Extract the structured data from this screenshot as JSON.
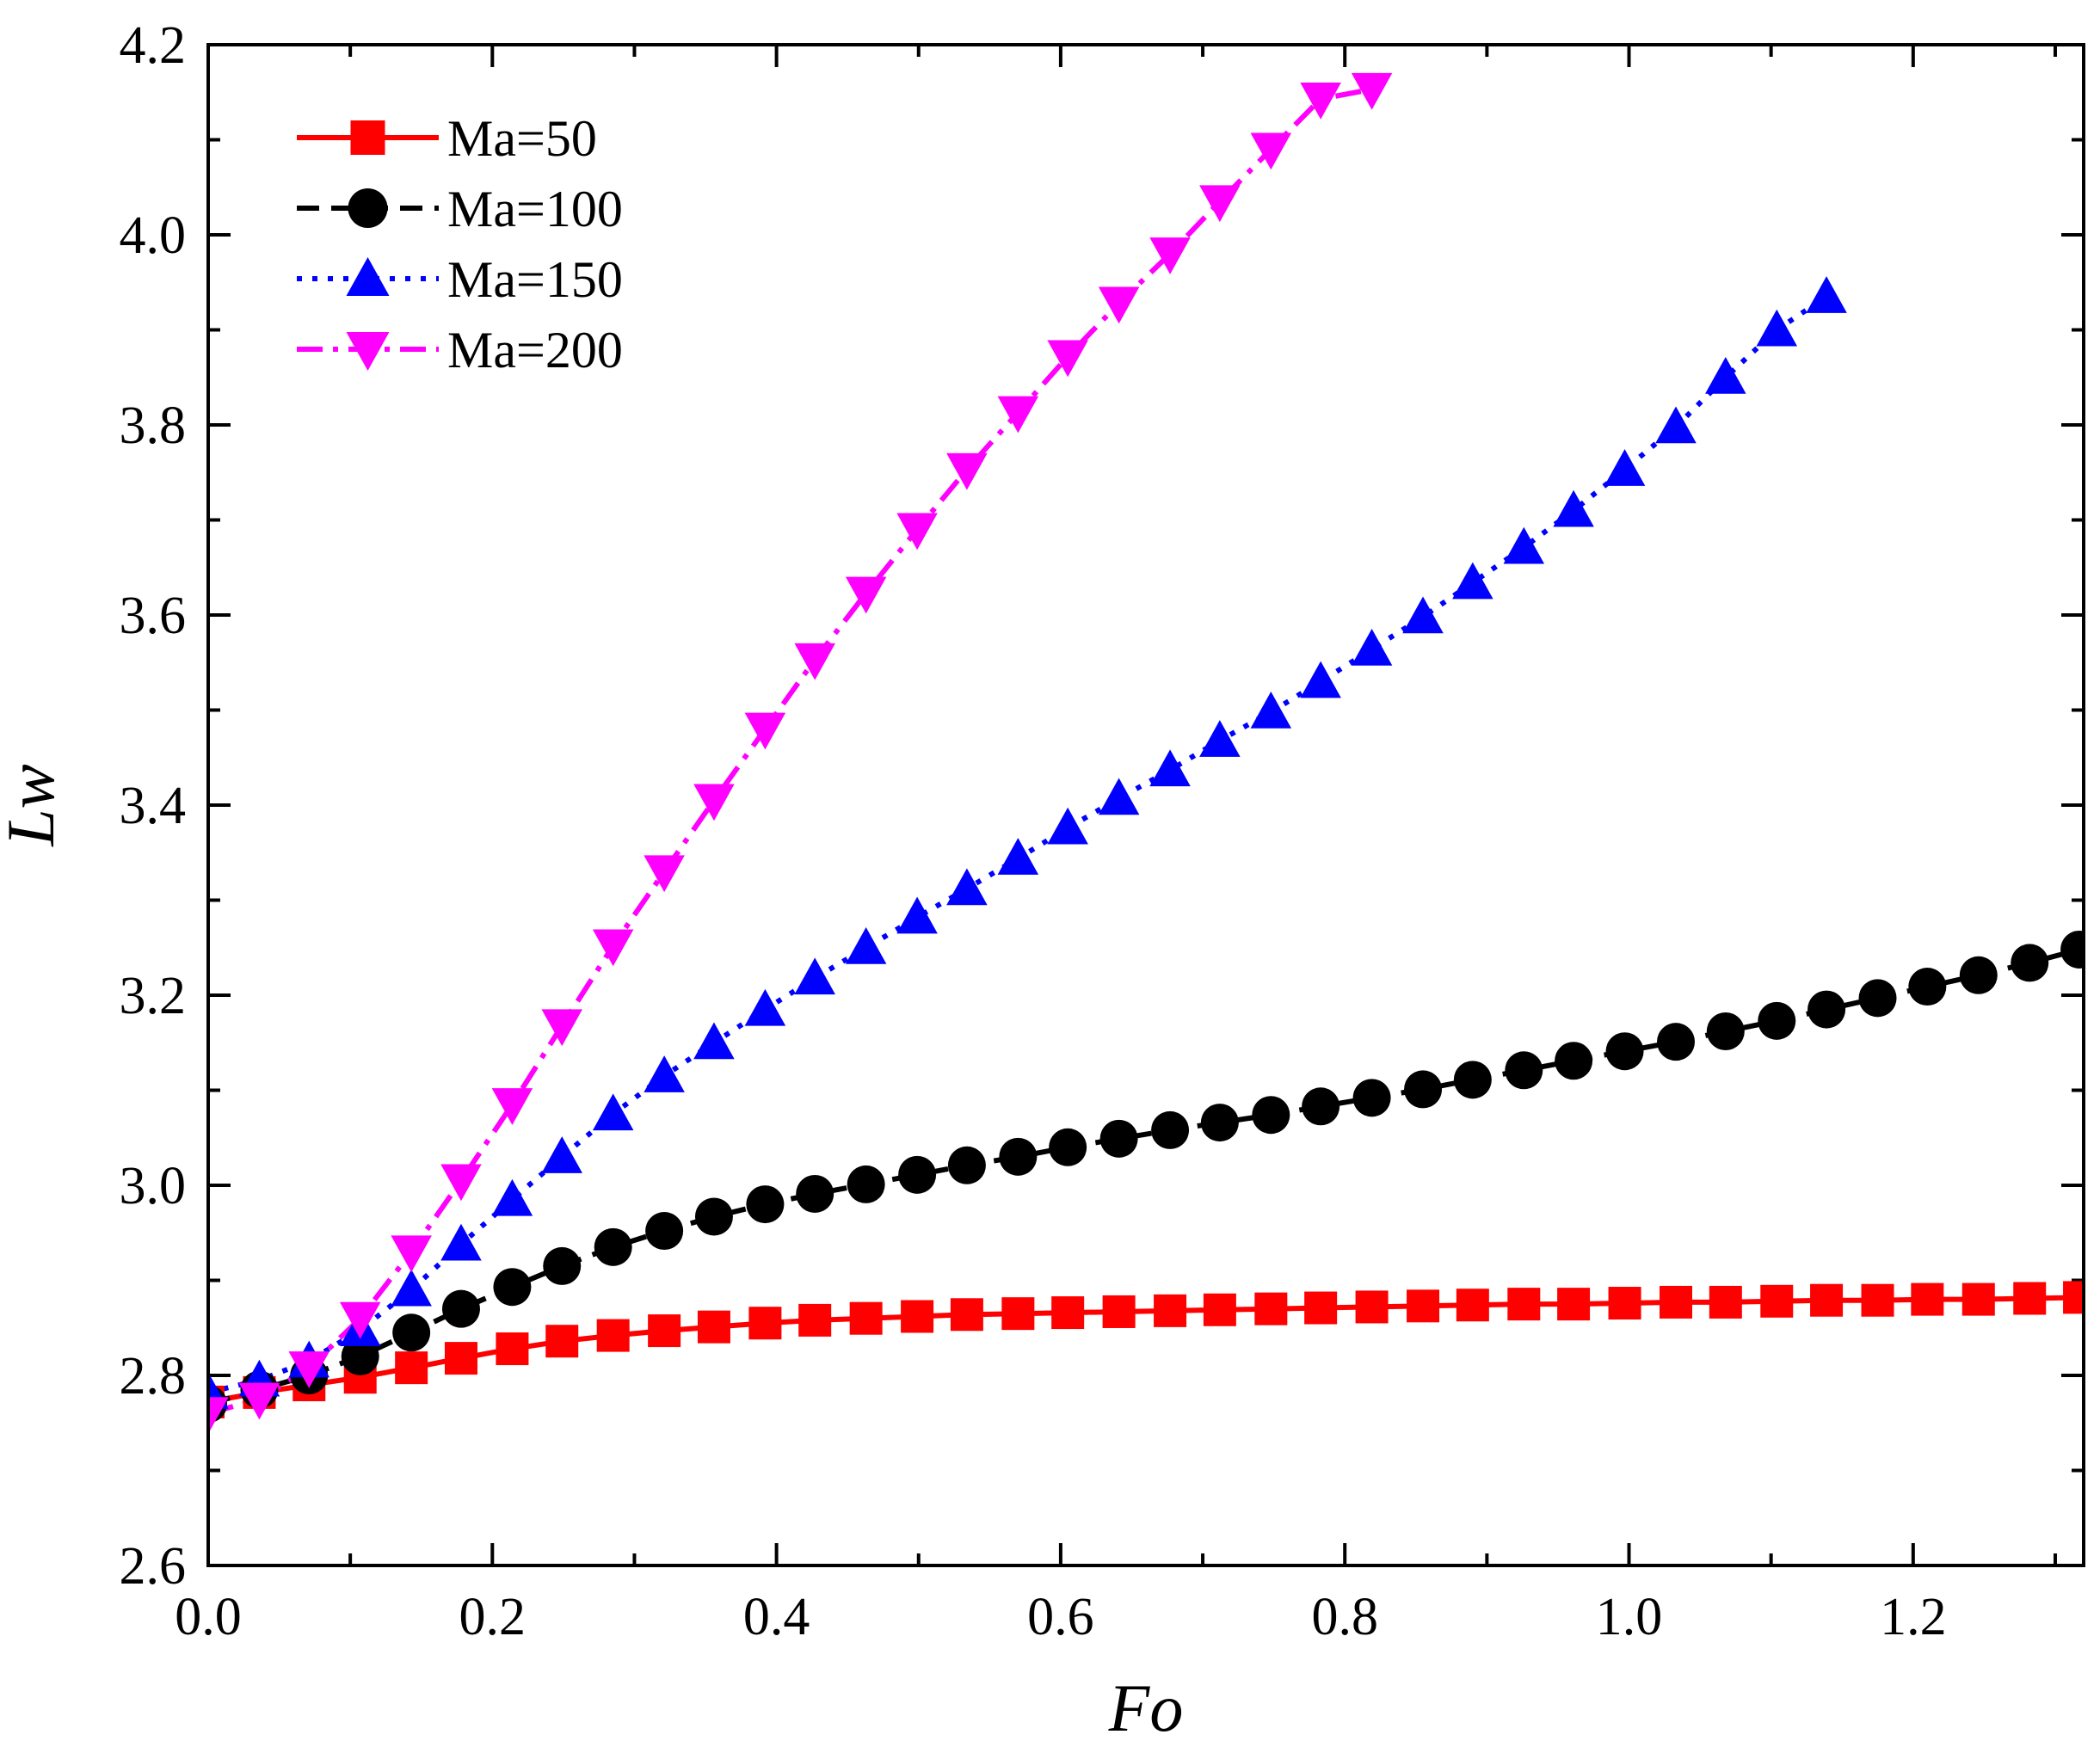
{
  "chart_data": {
    "type": "line",
    "title": "",
    "xlabel": "Fo",
    "ylabel": "Lw",
    "xlim": [
      0,
      1.32
    ],
    "ylim": [
      2.6,
      4.2
    ],
    "xticks": [
      "0.0",
      "0.2",
      "0.4",
      "0.6",
      "0.8",
      "1.0",
      "1.2"
    ],
    "xtick_values": [
      0,
      0.2,
      0.4,
      0.6,
      0.8,
      1.0,
      1.2
    ],
    "yticks": [
      "2.6",
      "2.8",
      "3.0",
      "3.2",
      "3.4",
      "3.6",
      "3.8",
      "4.0",
      "4.2"
    ],
    "ytick_values": [
      2.6,
      2.8,
      3.0,
      3.2,
      3.4,
      3.6,
      3.8,
      4.0,
      4.2
    ],
    "grid": false,
    "legend_position": "top-left",
    "series": [
      {
        "name": "Ma=50",
        "color": "#ff0000",
        "marker": "square",
        "line_style": "solid",
        "x": [
          0.0,
          0.036,
          0.071,
          0.107,
          0.143,
          0.178,
          0.214,
          0.249,
          0.285,
          0.321,
          0.356,
          0.392,
          0.427,
          0.463,
          0.499,
          0.534,
          0.57,
          0.605,
          0.641,
          0.677,
          0.712,
          0.748,
          0.783,
          0.819,
          0.855,
          0.89,
          0.926,
          0.961,
          0.997,
          1.033,
          1.068,
          1.104,
          1.139,
          1.175,
          1.21,
          1.246,
          1.282,
          1.317
        ],
        "values": [
          2.772,
          2.782,
          2.79,
          2.798,
          2.808,
          2.818,
          2.828,
          2.836,
          2.842,
          2.847,
          2.851,
          2.855,
          2.858,
          2.86,
          2.862,
          2.864,
          2.865,
          2.866,
          2.867,
          2.868,
          2.869,
          2.87,
          2.871,
          2.872,
          2.873,
          2.874,
          2.875,
          2.875,
          2.876,
          2.877,
          2.877,
          2.878,
          2.879,
          2.879,
          2.88,
          2.88,
          2.881,
          2.882
        ]
      },
      {
        "name": "Ma=100",
        "color": "#000000",
        "marker": "circle",
        "line_style": "dashed",
        "x": [
          0.0,
          0.036,
          0.071,
          0.107,
          0.143,
          0.178,
          0.214,
          0.249,
          0.285,
          0.321,
          0.356,
          0.392,
          0.427,
          0.463,
          0.499,
          0.534,
          0.57,
          0.605,
          0.641,
          0.677,
          0.712,
          0.748,
          0.783,
          0.819,
          0.855,
          0.89,
          0.926,
          0.961,
          0.997,
          1.033,
          1.068,
          1.104,
          1.139,
          1.175,
          1.21,
          1.246,
          1.282,
          1.317
        ],
        "values": [
          2.77,
          2.785,
          2.8,
          2.82,
          2.845,
          2.87,
          2.893,
          2.915,
          2.935,
          2.952,
          2.967,
          2.98,
          2.991,
          3.001,
          3.011,
          3.021,
          3.03,
          3.04,
          3.049,
          3.058,
          3.066,
          3.074,
          3.083,
          3.092,
          3.101,
          3.111,
          3.121,
          3.131,
          3.141,
          3.151,
          3.162,
          3.173,
          3.185,
          3.197,
          3.209,
          3.221,
          3.234,
          3.248
        ]
      },
      {
        "name": "Ma=150",
        "color": "#0000ff",
        "marker": "triangle-up",
        "line_style": "dotted",
        "x": [
          0.0,
          0.036,
          0.071,
          0.107,
          0.143,
          0.178,
          0.214,
          0.249,
          0.285,
          0.321,
          0.356,
          0.392,
          0.427,
          0.463,
          0.499,
          0.534,
          0.57,
          0.605,
          0.641,
          0.677,
          0.712,
          0.748,
          0.783,
          0.819,
          0.855,
          0.89,
          0.926,
          0.961,
          0.997,
          1.033,
          1.068,
          1.104,
          1.139
        ],
        "values": [
          2.782,
          2.795,
          2.815,
          2.848,
          2.89,
          2.938,
          2.985,
          3.03,
          3.075,
          3.115,
          3.15,
          3.185,
          3.218,
          3.25,
          3.282,
          3.312,
          3.344,
          3.376,
          3.407,
          3.437,
          3.468,
          3.498,
          3.53,
          3.564,
          3.598,
          3.634,
          3.671,
          3.71,
          3.753,
          3.798,
          3.85,
          3.9,
          3.935
        ]
      },
      {
        "name": "Ma=200",
        "color": "#ff00ff",
        "marker": "triangle-down",
        "line_style": "dash-dot",
        "x": [
          0.0,
          0.036,
          0.071,
          0.107,
          0.143,
          0.178,
          0.214,
          0.249,
          0.285,
          0.321,
          0.356,
          0.392,
          0.427,
          0.463,
          0.499,
          0.534,
          0.57,
          0.605,
          0.641,
          0.677,
          0.712,
          0.748,
          0.783,
          0.819
        ],
        "values": [
          2.76,
          2.775,
          2.808,
          2.86,
          2.93,
          3.005,
          3.085,
          3.168,
          3.252,
          3.33,
          3.405,
          3.48,
          3.553,
          3.623,
          3.69,
          3.753,
          3.813,
          3.872,
          3.928,
          3.98,
          4.035,
          4.09,
          4.143,
          4.153
        ]
      }
    ]
  }
}
